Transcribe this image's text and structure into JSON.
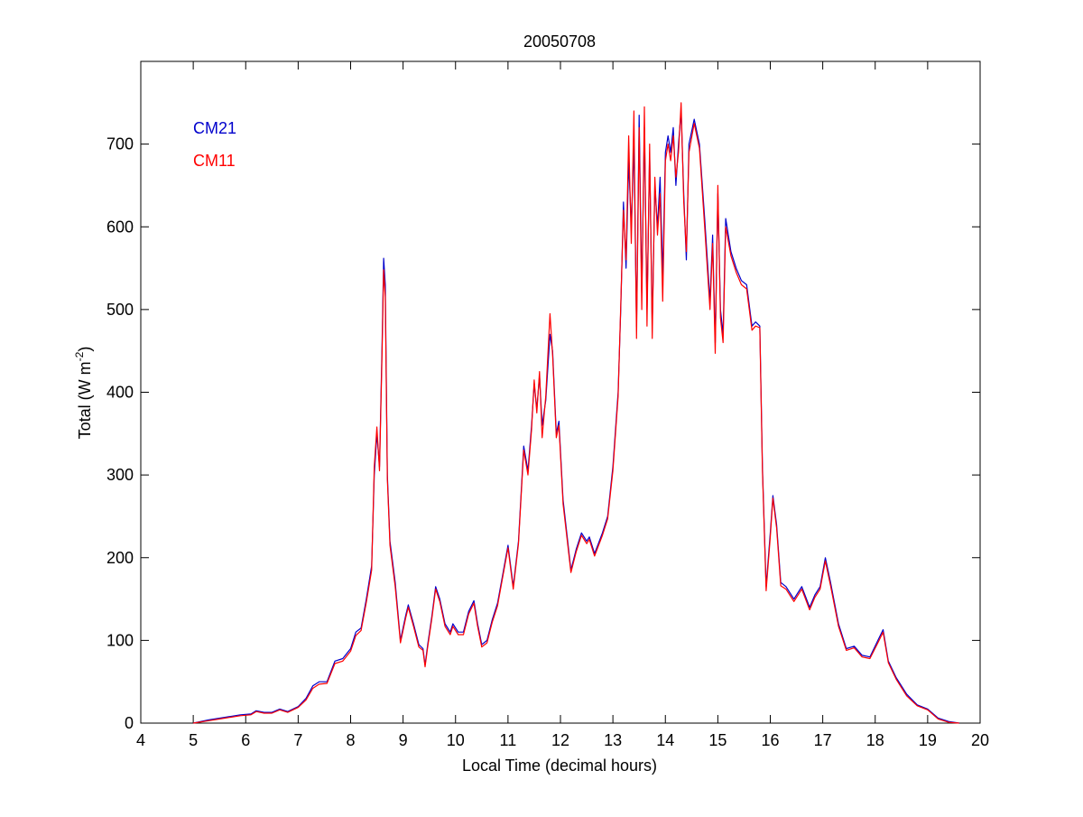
{
  "chart_data": {
    "type": "line",
    "title": "20050708",
    "xlabel": "Local Time (decimal hours)",
    "ylabel_main": "Total (W m",
    "ylabel_exp": "-2",
    "ylabel_close": ")",
    "xlim": [
      4,
      20
    ],
    "ylim": [
      0,
      800
    ],
    "xticks": [
      4,
      5,
      6,
      7,
      8,
      9,
      10,
      11,
      12,
      13,
      14,
      15,
      16,
      17,
      18,
      19,
      20
    ],
    "yticks": [
      0,
      100,
      200,
      300,
      400,
      500,
      600,
      700
    ],
    "grid": false,
    "legend_position": "top-left",
    "series": [
      {
        "name": "CM21",
        "color": "#0000cc",
        "points": [
          [
            5.0,
            0
          ],
          [
            5.3,
            4
          ],
          [
            5.6,
            7
          ],
          [
            5.9,
            10
          ],
          [
            6.1,
            11
          ],
          [
            6.2,
            15
          ],
          [
            6.35,
            13
          ],
          [
            6.5,
            13
          ],
          [
            6.65,
            17
          ],
          [
            6.8,
            14
          ],
          [
            7.0,
            20
          ],
          [
            7.15,
            30
          ],
          [
            7.28,
            45
          ],
          [
            7.4,
            50
          ],
          [
            7.55,
            50
          ],
          [
            7.7,
            75
          ],
          [
            7.85,
            78
          ],
          [
            8.0,
            90
          ],
          [
            8.1,
            110
          ],
          [
            8.2,
            115
          ],
          [
            8.3,
            150
          ],
          [
            8.4,
            190
          ],
          [
            8.45,
            300
          ],
          [
            8.5,
            350
          ],
          [
            8.55,
            310
          ],
          [
            8.6,
            460
          ],
          [
            8.63,
            562
          ],
          [
            8.66,
            530
          ],
          [
            8.7,
            300
          ],
          [
            8.75,
            220
          ],
          [
            8.85,
            170
          ],
          [
            8.95,
            100
          ],
          [
            9.05,
            130
          ],
          [
            9.1,
            143
          ],
          [
            9.2,
            120
          ],
          [
            9.3,
            95
          ],
          [
            9.38,
            90
          ],
          [
            9.42,
            70
          ],
          [
            9.47,
            95
          ],
          [
            9.55,
            130
          ],
          [
            9.62,
            165
          ],
          [
            9.7,
            150
          ],
          [
            9.8,
            120
          ],
          [
            9.9,
            110
          ],
          [
            9.95,
            120
          ],
          [
            10.05,
            110
          ],
          [
            10.15,
            110
          ],
          [
            10.25,
            135
          ],
          [
            10.35,
            148
          ],
          [
            10.42,
            120
          ],
          [
            10.5,
            95
          ],
          [
            10.6,
            100
          ],
          [
            10.7,
            125
          ],
          [
            10.8,
            145
          ],
          [
            10.9,
            180
          ],
          [
            11.0,
            215
          ],
          [
            11.1,
            165
          ],
          [
            11.2,
            220
          ],
          [
            11.3,
            335
          ],
          [
            11.38,
            305
          ],
          [
            11.45,
            360
          ],
          [
            11.5,
            410
          ],
          [
            11.55,
            380
          ],
          [
            11.6,
            420
          ],
          [
            11.65,
            360
          ],
          [
            11.72,
            390
          ],
          [
            11.8,
            470
          ],
          [
            11.85,
            450
          ],
          [
            11.92,
            350
          ],
          [
            11.97,
            365
          ],
          [
            12.05,
            270
          ],
          [
            12.2,
            185
          ],
          [
            12.3,
            210
          ],
          [
            12.4,
            230
          ],
          [
            12.5,
            220
          ],
          [
            12.55,
            225
          ],
          [
            12.65,
            205
          ],
          [
            12.8,
            230
          ],
          [
            12.9,
            250
          ],
          [
            13.0,
            310
          ],
          [
            13.1,
            400
          ],
          [
            13.15,
            500
          ],
          [
            13.2,
            630
          ],
          [
            13.25,
            550
          ],
          [
            13.3,
            680
          ],
          [
            13.35,
            600
          ],
          [
            13.4,
            700
          ],
          [
            13.45,
            480
          ],
          [
            13.5,
            735
          ],
          [
            13.55,
            520
          ],
          [
            13.6,
            720
          ],
          [
            13.65,
            500
          ],
          [
            13.7,
            690
          ],
          [
            13.75,
            480
          ],
          [
            13.8,
            650
          ],
          [
            13.85,
            600
          ],
          [
            13.9,
            660
          ],
          [
            13.95,
            540
          ],
          [
            14.0,
            690
          ],
          [
            14.05,
            710
          ],
          [
            14.1,
            690
          ],
          [
            14.15,
            720
          ],
          [
            14.2,
            650
          ],
          [
            14.25,
            700
          ],
          [
            14.3,
            740
          ],
          [
            14.35,
            640
          ],
          [
            14.4,
            560
          ],
          [
            14.45,
            700
          ],
          [
            14.55,
            730
          ],
          [
            14.65,
            700
          ],
          [
            14.75,
            610
          ],
          [
            14.85,
            510
          ],
          [
            14.9,
            590
          ],
          [
            14.95,
            460
          ],
          [
            15.0,
            640
          ],
          [
            15.05,
            500
          ],
          [
            15.1,
            470
          ],
          [
            15.15,
            610
          ],
          [
            15.25,
            570
          ],
          [
            15.35,
            550
          ],
          [
            15.45,
            535
          ],
          [
            15.55,
            530
          ],
          [
            15.65,
            480
          ],
          [
            15.72,
            485
          ],
          [
            15.8,
            480
          ],
          [
            15.85,
            310
          ],
          [
            15.92,
            165
          ],
          [
            16.0,
            230
          ],
          [
            16.05,
            275
          ],
          [
            16.12,
            240
          ],
          [
            16.2,
            170
          ],
          [
            16.3,
            165
          ],
          [
            16.45,
            150
          ],
          [
            16.6,
            165
          ],
          [
            16.75,
            140
          ],
          [
            16.85,
            155
          ],
          [
            16.95,
            165
          ],
          [
            17.05,
            200
          ],
          [
            17.15,
            170
          ],
          [
            17.3,
            120
          ],
          [
            17.45,
            90
          ],
          [
            17.6,
            93
          ],
          [
            17.75,
            82
          ],
          [
            17.9,
            80
          ],
          [
            18.05,
            100
          ],
          [
            18.15,
            113
          ],
          [
            18.25,
            75
          ],
          [
            18.4,
            55
          ],
          [
            18.6,
            35
          ],
          [
            18.8,
            22
          ],
          [
            19.0,
            17
          ],
          [
            19.2,
            6
          ],
          [
            19.4,
            2
          ],
          [
            19.6,
            0
          ]
        ]
      },
      {
        "name": "CM11",
        "color": "#ff0000",
        "points": [
          [
            5.0,
            0
          ],
          [
            5.3,
            3
          ],
          [
            5.6,
            6
          ],
          [
            5.9,
            9
          ],
          [
            6.1,
            10
          ],
          [
            6.2,
            14
          ],
          [
            6.35,
            12
          ],
          [
            6.5,
            12
          ],
          [
            6.65,
            16
          ],
          [
            6.8,
            13
          ],
          [
            7.0,
            19
          ],
          [
            7.15,
            28
          ],
          [
            7.28,
            42
          ],
          [
            7.4,
            47
          ],
          [
            7.55,
            48
          ],
          [
            7.7,
            72
          ],
          [
            7.85,
            75
          ],
          [
            8.0,
            87
          ],
          [
            8.1,
            106
          ],
          [
            8.2,
            112
          ],
          [
            8.3,
            146
          ],
          [
            8.4,
            185
          ],
          [
            8.45,
            310
          ],
          [
            8.5,
            358
          ],
          [
            8.55,
            305
          ],
          [
            8.6,
            450
          ],
          [
            8.63,
            548
          ],
          [
            8.66,
            515
          ],
          [
            8.7,
            295
          ],
          [
            8.75,
            215
          ],
          [
            8.85,
            165
          ],
          [
            8.95,
            97
          ],
          [
            9.05,
            127
          ],
          [
            9.1,
            140
          ],
          [
            9.2,
            117
          ],
          [
            9.3,
            92
          ],
          [
            9.38,
            88
          ],
          [
            9.42,
            68
          ],
          [
            9.47,
            92
          ],
          [
            9.55,
            127
          ],
          [
            9.62,
            162
          ],
          [
            9.7,
            147
          ],
          [
            9.8,
            117
          ],
          [
            9.9,
            107
          ],
          [
            9.95,
            117
          ],
          [
            10.05,
            107
          ],
          [
            10.15,
            107
          ],
          [
            10.25,
            132
          ],
          [
            10.35,
            145
          ],
          [
            10.42,
            117
          ],
          [
            10.5,
            92
          ],
          [
            10.6,
            97
          ],
          [
            10.7,
            122
          ],
          [
            10.8,
            142
          ],
          [
            10.9,
            177
          ],
          [
            11.0,
            212
          ],
          [
            11.1,
            162
          ],
          [
            11.2,
            217
          ],
          [
            11.3,
            330
          ],
          [
            11.38,
            300
          ],
          [
            11.45,
            355
          ],
          [
            11.5,
            415
          ],
          [
            11.55,
            375
          ],
          [
            11.6,
            425
          ],
          [
            11.65,
            345
          ],
          [
            11.72,
            395
          ],
          [
            11.8,
            495
          ],
          [
            11.85,
            445
          ],
          [
            11.92,
            345
          ],
          [
            11.97,
            360
          ],
          [
            12.05,
            265
          ],
          [
            12.2,
            182
          ],
          [
            12.3,
            207
          ],
          [
            12.4,
            227
          ],
          [
            12.5,
            217
          ],
          [
            12.55,
            222
          ],
          [
            12.65,
            202
          ],
          [
            12.8,
            227
          ],
          [
            12.9,
            247
          ],
          [
            13.0,
            305
          ],
          [
            13.1,
            395
          ],
          [
            13.15,
            505
          ],
          [
            13.2,
            620
          ],
          [
            13.25,
            560
          ],
          [
            13.3,
            710
          ],
          [
            13.35,
            580
          ],
          [
            13.4,
            740
          ],
          [
            13.45,
            465
          ],
          [
            13.5,
            720
          ],
          [
            13.55,
            500
          ],
          [
            13.6,
            745
          ],
          [
            13.65,
            480
          ],
          [
            13.7,
            700
          ],
          [
            13.75,
            465
          ],
          [
            13.8,
            660
          ],
          [
            13.85,
            590
          ],
          [
            13.9,
            640
          ],
          [
            13.95,
            510
          ],
          [
            14.0,
            680
          ],
          [
            14.05,
            700
          ],
          [
            14.1,
            680
          ],
          [
            14.15,
            710
          ],
          [
            14.2,
            660
          ],
          [
            14.25,
            690
          ],
          [
            14.3,
            750
          ],
          [
            14.35,
            630
          ],
          [
            14.4,
            570
          ],
          [
            14.45,
            690
          ],
          [
            14.55,
            725
          ],
          [
            14.65,
            695
          ],
          [
            14.75,
            600
          ],
          [
            14.85,
            500
          ],
          [
            14.9,
            580
          ],
          [
            14.95,
            447
          ],
          [
            15.0,
            650
          ],
          [
            15.05,
            490
          ],
          [
            15.1,
            460
          ],
          [
            15.15,
            600
          ],
          [
            15.25,
            565
          ],
          [
            15.35,
            545
          ],
          [
            15.45,
            530
          ],
          [
            15.55,
            525
          ],
          [
            15.65,
            475
          ],
          [
            15.72,
            480
          ],
          [
            15.8,
            478
          ],
          [
            15.85,
            305
          ],
          [
            15.92,
            160
          ],
          [
            16.0,
            225
          ],
          [
            16.05,
            272
          ],
          [
            16.12,
            236
          ],
          [
            16.2,
            166
          ],
          [
            16.3,
            162
          ],
          [
            16.45,
            147
          ],
          [
            16.6,
            162
          ],
          [
            16.75,
            137
          ],
          [
            16.85,
            152
          ],
          [
            16.95,
            162
          ],
          [
            17.05,
            196
          ],
          [
            17.15,
            166
          ],
          [
            17.3,
            117
          ],
          [
            17.45,
            88
          ],
          [
            17.6,
            91
          ],
          [
            17.75,
            80
          ],
          [
            17.9,
            78
          ],
          [
            18.05,
            97
          ],
          [
            18.15,
            110
          ],
          [
            18.25,
            73
          ],
          [
            18.4,
            53
          ],
          [
            18.6,
            33
          ],
          [
            18.8,
            21
          ],
          [
            19.0,
            16
          ],
          [
            19.2,
            5
          ],
          [
            19.4,
            1
          ],
          [
            19.6,
            0
          ]
        ]
      }
    ]
  }
}
